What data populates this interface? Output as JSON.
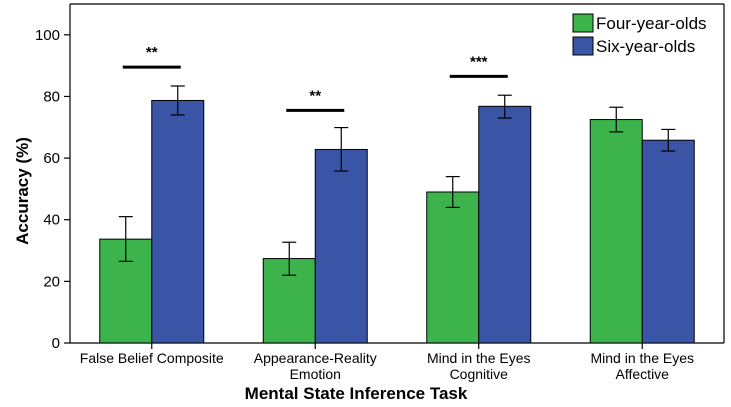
{
  "chart_data": {
    "type": "bar",
    "title": "",
    "xlabel": "Mental State Inference Task",
    "ylabel": "Accuracy (%)",
    "ylim": [
      0,
      110
    ],
    "yticks": [
      0,
      20,
      40,
      60,
      80,
      100
    ],
    "grid": false,
    "legend_position": "top-right",
    "categories": [
      [
        "False Belief Composite"
      ],
      [
        "Appearance-Reality",
        "Emotion"
      ],
      [
        "Mind in the Eyes",
        "Cognitive"
      ],
      [
        "Mind in the Eyes",
        "Affective"
      ]
    ],
    "series": [
      {
        "name": "Four-year-olds",
        "color": "#3cb44b",
        "values": [
          33.7,
          27.4,
          49.0,
          72.5
        ],
        "error": [
          [
            26.5,
            41.0
          ],
          [
            22.0,
            32.7
          ],
          [
            44.0,
            54.0
          ],
          [
            68.5,
            76.5
          ]
        ]
      },
      {
        "name": "Six-year-olds",
        "color": "#3a55a5",
        "values": [
          78.7,
          62.8,
          76.8,
          65.8
        ],
        "error": [
          [
            74.0,
            83.4
          ],
          [
            55.8,
            69.9
          ],
          [
            73.0,
            80.4
          ],
          [
            62.3,
            69.3
          ]
        ]
      }
    ],
    "significance": [
      {
        "category_index": 0,
        "label": "**",
        "y": 89.5
      },
      {
        "category_index": 1,
        "label": "**",
        "y": 75.5
      },
      {
        "category_index": 2,
        "label": "***",
        "y": 86.5
      }
    ]
  }
}
